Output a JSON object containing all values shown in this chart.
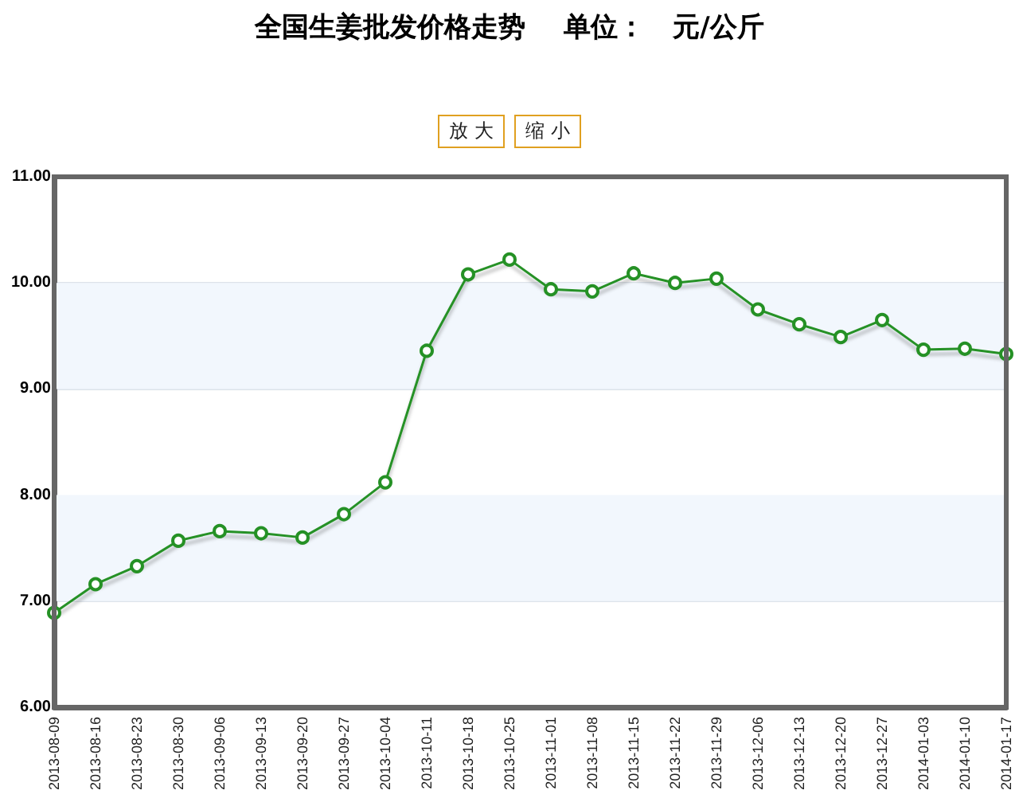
{
  "chart_data": {
    "type": "line",
    "title": "全国生姜批发价格走势    单位：   元/公斤",
    "categories": [
      "2013-08-09",
      "2013-08-16",
      "2013-08-23",
      "2013-08-30",
      "2013-09-06",
      "2013-09-13",
      "2013-09-20",
      "2013-09-27",
      "2013-10-04",
      "2013-10-11",
      "2013-10-18",
      "2013-10-25",
      "2013-11-01",
      "2013-11-08",
      "2013-11-15",
      "2013-11-22",
      "2013-11-29",
      "2013-12-06",
      "2013-12-13",
      "2013-12-20",
      "2013-12-27",
      "2014-01-03",
      "2014-01-10",
      "2014-01-17"
    ],
    "series": [
      {
        "color": "#259125",
        "values": [
          6.89,
          7.16,
          7.33,
          7.57,
          7.66,
          7.64,
          7.6,
          7.82,
          8.12,
          9.36,
          10.08,
          10.22,
          9.94,
          9.92,
          10.09,
          10.0,
          10.04,
          9.75,
          9.61,
          9.49,
          9.65,
          9.37,
          9.38,
          9.33
        ]
      }
    ],
    "ylim": [
      6,
      11
    ],
    "yticks": [
      {
        "value": 6,
        "label": "6.00"
      },
      {
        "value": 7,
        "label": "7.00"
      },
      {
        "value": 8,
        "label": "8.00"
      },
      {
        "value": 9,
        "label": "9.00"
      },
      {
        "value": 10,
        "label": "10.00"
      },
      {
        "value": 11,
        "label": "11.00"
      }
    ],
    "bands": [
      {
        "axis": "y",
        "from": 7,
        "to": 8,
        "color": "#f2f7fd"
      },
      {
        "axis": "y",
        "from": 9,
        "to": 10,
        "color": "#f2f7fd"
      }
    ],
    "annotations": [
      "放 大",
      "缩 小"
    ],
    "grid": "y",
    "marker": "circle",
    "line_style": "solid"
  }
}
